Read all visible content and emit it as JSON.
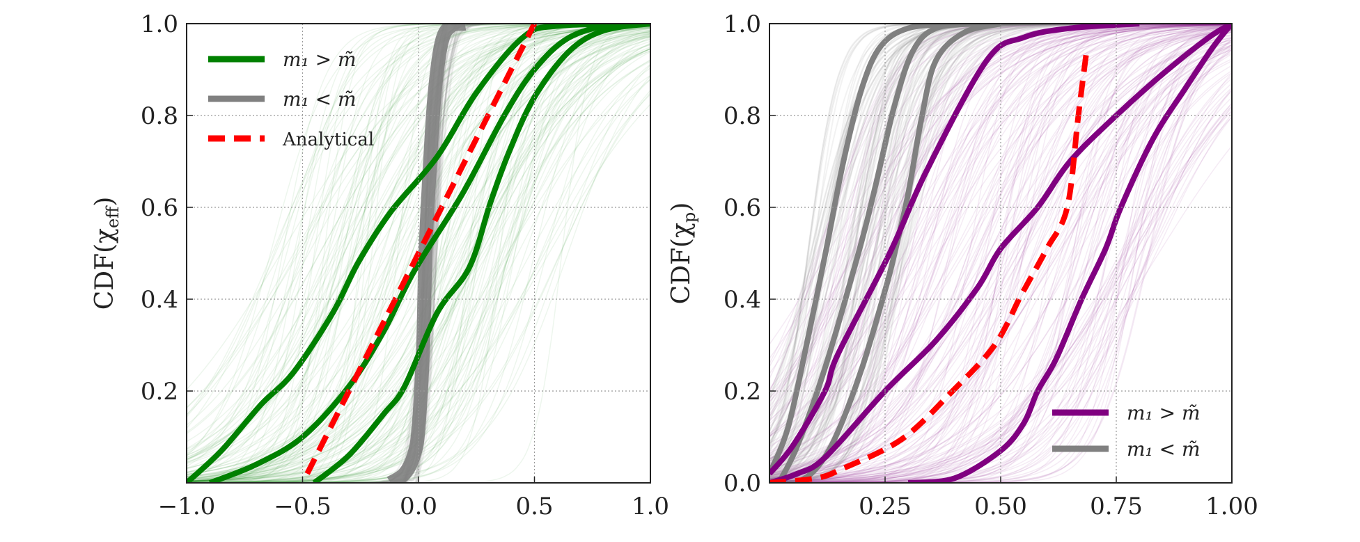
{
  "chart_data": [
    {
      "type": "line",
      "ylabel": "CDF(χeff)",
      "ylabel_main": "CDF(χ",
      "ylabel_sub": "eff",
      "ylabel_close": ")",
      "xlim": [
        -1.0,
        1.0
      ],
      "ylim": [
        0.0,
        1.0
      ],
      "xticks": [
        -1.0,
        -0.5,
        0.0,
        0.5,
        1.0
      ],
      "xtick_labels": [
        "−1.0",
        "−0.5",
        "0.0",
        "0.5",
        "1.0"
      ],
      "yticks": [
        0.2,
        0.4,
        0.6,
        0.8,
        1.0
      ],
      "ytick_labels": [
        "0.2",
        "0.4",
        "0.6",
        "0.8",
        "1.0"
      ],
      "grid": true,
      "legend_placement": "upper-left",
      "legend": [
        {
          "label": "m₁ > m̃",
          "color": "#008000",
          "style": "solid"
        },
        {
          "label": "m₁ < m̃",
          "color": "#808080",
          "style": "solid"
        },
        {
          "label": "Analytical",
          "color": "#ff0000",
          "style": "dashed"
        }
      ],
      "series": [
        {
          "group": "m₁ < m̃",
          "color": "#808080",
          "style": "band",
          "x": [
            -0.12,
            -0.06,
            -0.02,
            0.0,
            0.02,
            0.03,
            0.05,
            0.07,
            0.1,
            0.14,
            0.2
          ],
          "y": [
            0.0,
            0.02,
            0.06,
            0.12,
            0.3,
            0.5,
            0.7,
            0.85,
            0.96,
            0.995,
            1.0
          ]
        },
        {
          "group": "m₁ > m̃",
          "color": "#008000",
          "style": "solid",
          "x": [
            -1.0,
            -0.85,
            -0.68,
            -0.54,
            -0.37,
            -0.26,
            -0.12,
            0.08,
            0.25,
            0.45,
            0.6,
            1.0
          ],
          "y": [
            0.0,
            0.07,
            0.17,
            0.24,
            0.37,
            0.48,
            0.59,
            0.71,
            0.85,
            0.97,
            0.995,
            1.0
          ]
        },
        {
          "group": "m₁ > m̃",
          "color": "#008000",
          "style": "solid",
          "x": [
            -0.9,
            -0.7,
            -0.5,
            -0.3,
            -0.15,
            -0.02,
            0.19,
            0.37,
            0.5,
            0.65,
            0.85,
            1.0
          ],
          "y": [
            0.0,
            0.04,
            0.1,
            0.21,
            0.33,
            0.46,
            0.63,
            0.8,
            0.9,
            0.97,
            1.0,
            1.0
          ]
        },
        {
          "group": "m₁ > m̃",
          "color": "#008000",
          "style": "solid",
          "x": [
            -0.45,
            -0.3,
            -0.15,
            -0.06,
            0.08,
            0.22,
            0.31,
            0.39,
            0.5,
            0.65,
            0.8,
            1.0
          ],
          "y": [
            0.0,
            0.06,
            0.15,
            0.21,
            0.37,
            0.47,
            0.61,
            0.72,
            0.84,
            0.94,
            0.985,
            1.0
          ]
        },
        {
          "group": "Analytical",
          "color": "#ff0000",
          "style": "dashed",
          "x": [
            -0.48,
            0.5
          ],
          "y": [
            0.02,
            1.0
          ]
        }
      ]
    },
    {
      "type": "line",
      "ylabel": "CDF(χp)",
      "ylabel_main": "CDF(χ",
      "ylabel_sub": "p",
      "ylabel_close": ")",
      "xlim": [
        0.0,
        1.0
      ],
      "ylim": [
        0.0,
        1.0
      ],
      "xticks": [
        0.25,
        0.5,
        0.75,
        1.0
      ],
      "xtick_labels": [
        "0.25",
        "0.50",
        "0.75",
        "1.00"
      ],
      "yticks": [
        0.0,
        0.2,
        0.4,
        0.6,
        0.8,
        1.0
      ],
      "ytick_labels": [
        "0.0",
        "0.2",
        "0.4",
        "0.6",
        "0.8",
        "1.0"
      ],
      "grid": true,
      "legend_placement": "lower-right",
      "legend": [
        {
          "label": "m₁ > m̃",
          "color": "#800080",
          "style": "solid"
        },
        {
          "label": "m₁ < m̃",
          "color": "#808080",
          "style": "solid"
        }
      ],
      "series": [
        {
          "group": "m₁ < m̃",
          "color": "#808080",
          "style": "solid",
          "x": [
            0.0,
            0.04,
            0.08,
            0.123,
            0.16,
            0.2,
            0.24,
            0.3,
            0.4
          ],
          "y": [
            0.02,
            0.12,
            0.3,
            0.51,
            0.7,
            0.86,
            0.95,
            0.99,
            1.0
          ]
        },
        {
          "group": "m₁ < m̃",
          "color": "#808080",
          "style": "solid",
          "x": [
            0.02,
            0.06,
            0.12,
            0.195,
            0.23,
            0.27,
            0.31,
            0.36,
            0.45
          ],
          "y": [
            0.0,
            0.08,
            0.25,
            0.51,
            0.65,
            0.82,
            0.94,
            0.99,
            1.0
          ]
        },
        {
          "group": "m₁ < m̃",
          "color": "#808080",
          "style": "solid",
          "x": [
            0.06,
            0.1,
            0.143,
            0.2,
            0.253,
            0.273,
            0.3,
            0.33,
            0.36,
            0.42,
            0.5
          ],
          "y": [
            0.0,
            0.03,
            0.1,
            0.25,
            0.43,
            0.51,
            0.63,
            0.8,
            0.92,
            0.98,
            1.0
          ]
        },
        {
          "group": "m₁ > m̃",
          "color": "#800080",
          "style": "solid",
          "x": [
            0.0,
            0.05,
            0.12,
            0.148,
            0.26,
            0.34,
            0.47,
            0.55,
            0.65,
            0.8
          ],
          "y": [
            0.02,
            0.08,
            0.2,
            0.28,
            0.5,
            0.68,
            0.92,
            0.97,
            0.99,
            1.0
          ]
        },
        {
          "group": "m₁ > m̃",
          "color": "#800080",
          "style": "solid",
          "x": [
            0.0,
            0.06,
            0.12,
            0.25,
            0.36,
            0.45,
            0.5,
            0.58,
            0.65,
            0.75,
            0.85,
            0.95,
            1.0
          ],
          "y": [
            0.0,
            0.02,
            0.055,
            0.2,
            0.31,
            0.425,
            0.51,
            0.6,
            0.7,
            0.8,
            0.89,
            0.97,
            1.0
          ]
        },
        {
          "group": "m₁ > m̃",
          "color": "#800080",
          "style": "solid",
          "x": [
            0.3,
            0.4,
            0.5,
            0.55,
            0.58,
            0.62,
            0.675,
            0.727,
            0.76,
            0.83,
            0.9,
            0.96,
            1.0
          ],
          "y": [
            0.0,
            0.01,
            0.07,
            0.13,
            0.2,
            0.27,
            0.4,
            0.51,
            0.6,
            0.75,
            0.86,
            0.95,
            1.0
          ]
        },
        {
          "group": "Analytical",
          "color": "#ff0000",
          "style": "dashed",
          "x": [
            0.0,
            0.1,
            0.156,
            0.286,
            0.396,
            0.487,
            0.545,
            0.6,
            0.644,
            0.668,
            0.687
          ],
          "y": [
            0.0,
            0.01,
            0.03,
            0.095,
            0.2,
            0.3,
            0.41,
            0.51,
            0.6,
            0.8,
            0.95
          ]
        }
      ]
    }
  ]
}
